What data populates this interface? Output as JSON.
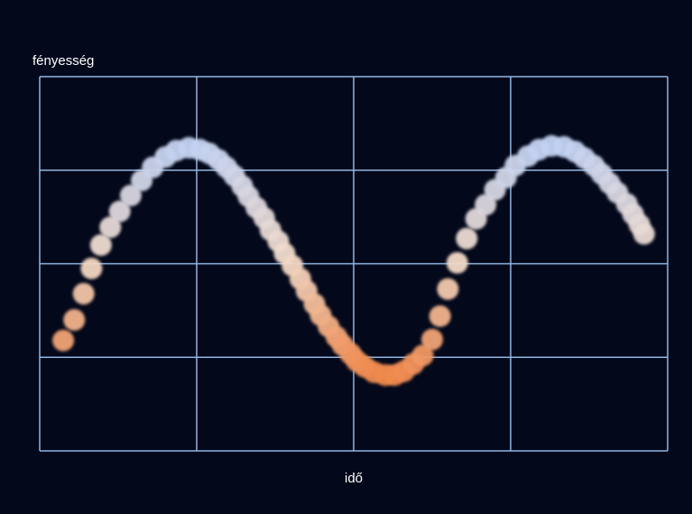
{
  "chart_data": {
    "type": "scatter",
    "y_label": "fényesség",
    "x_label": "idő",
    "xlim": [
      0,
      4
    ],
    "ylim": [
      0,
      4
    ],
    "xticks": [
      0,
      1,
      2,
      3,
      4
    ],
    "yticks": [
      0,
      1,
      2,
      3,
      4
    ],
    "grid": true,
    "grid_color": "#8fb6e2",
    "color_low": "#f08a4e",
    "color_mid": "#f3dccb",
    "color_high": "#c3d2f2",
    "x": [
      0.15,
      0.22,
      0.28,
      0.33,
      0.39,
      0.45,
      0.51,
      0.58,
      0.65,
      0.72,
      0.8,
      0.87,
      0.95,
      1.02,
      1.08,
      1.14,
      1.19,
      1.24,
      1.29,
      1.33,
      1.38,
      1.43,
      1.47,
      1.52,
      1.56,
      1.61,
      1.66,
      1.7,
      1.75,
      1.79,
      1.84,
      1.89,
      1.93,
      1.98,
      2.02,
      2.07,
      2.13,
      2.2,
      2.26,
      2.32,
      2.38,
      2.44,
      2.5,
      2.55,
      2.6,
      2.66,
      2.72,
      2.78,
      2.84,
      2.9,
      2.97,
      3.03,
      3.11,
      3.18,
      3.26,
      3.34,
      3.41,
      3.47,
      3.53,
      3.58,
      3.63,
      3.68,
      3.74,
      3.78,
      3.82,
      3.85
    ],
    "values": [
      1.18,
      1.4,
      1.68,
      1.95,
      2.2,
      2.39,
      2.56,
      2.73,
      2.89,
      3.03,
      3.14,
      3.21,
      3.24,
      3.22,
      3.18,
      3.11,
      3.03,
      2.94,
      2.83,
      2.72,
      2.6,
      2.49,
      2.36,
      2.24,
      2.11,
      1.98,
      1.84,
      1.71,
      1.57,
      1.45,
      1.33,
      1.22,
      1.13,
      1.04,
      0.96,
      0.9,
      0.84,
      0.81,
      0.81,
      0.85,
      0.93,
      1.02,
      1.19,
      1.44,
      1.73,
      2.01,
      2.27,
      2.48,
      2.63,
      2.79,
      2.92,
      3.05,
      3.15,
      3.22,
      3.26,
      3.25,
      3.2,
      3.13,
      3.05,
      2.96,
      2.86,
      2.76,
      2.64,
      2.53,
      2.42,
      2.32
    ]
  }
}
